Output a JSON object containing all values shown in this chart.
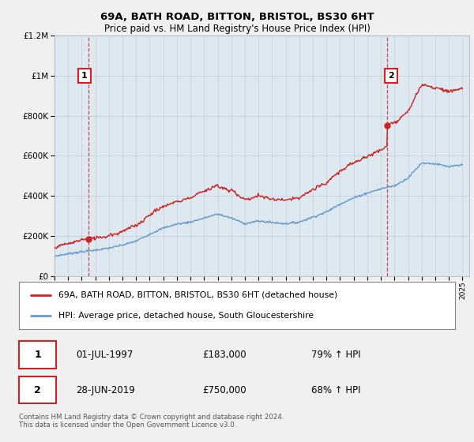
{
  "title": "69A, BATH ROAD, BITTON, BRISTOL, BS30 6HT",
  "subtitle": "Price paid vs. HM Land Registry's House Price Index (HPI)",
  "background_color": "#f0f0f0",
  "plot_background": "#dde8f0",
  "red_color": "#cc2222",
  "blue_color": "#6699cc",
  "point1_year": 1997.5,
  "point1_price": 183000,
  "point2_year": 2019.45,
  "point2_price": 750000,
  "point1_date": "01-JUL-1997",
  "point1_price_str": "£183,000",
  "point1_hpi": "79% ↑ HPI",
  "point2_date": "28-JUN-2019",
  "point2_price_str": "£750,000",
  "point2_hpi": "68% ↑ HPI",
  "legend_line1": "69A, BATH ROAD, BITTON, BRISTOL, BS30 6HT (detached house)",
  "legend_line2": "HPI: Average price, detached house, South Gloucestershire",
  "footnote": "Contains HM Land Registry data © Crown copyright and database right 2024.\nThis data is licensed under the Open Government Licence v3.0.",
  "ylim": [
    0,
    1200000
  ],
  "xlim_min": 1995,
  "xlim_max": 2025.5
}
